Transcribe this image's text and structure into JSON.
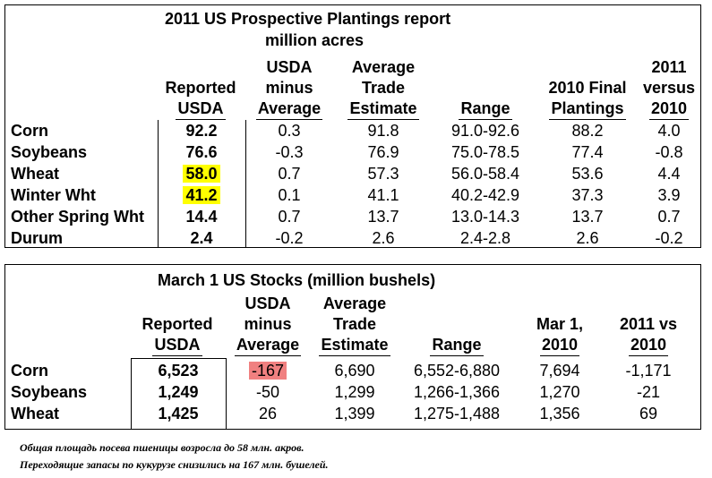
{
  "plantings": {
    "title_line1": "2011 US Prospective Plantings report",
    "title_line2": "million acres",
    "headers": {
      "reported": [
        "Reported",
        "USDA"
      ],
      "minus": [
        "USDA",
        "minus",
        "Average"
      ],
      "avg_trade": [
        "Average",
        "Trade",
        "Estimate"
      ],
      "range": [
        "Range"
      ],
      "final": [
        "2010 Final",
        "Plantings"
      ],
      "versus": [
        "2011",
        "versus",
        "2010"
      ]
    },
    "rows": [
      {
        "label": "Corn",
        "reported": "92.2",
        "minus": "0.3",
        "avg": "91.8",
        "range": "91.0-92.6",
        "final": "88.2",
        "versus": "4.0"
      },
      {
        "label": "Soybeans",
        "reported": "76.6",
        "minus": "-0.3",
        "avg": "76.9",
        "range": "75.0-78.5",
        "final": "77.4",
        "versus": "-0.8"
      },
      {
        "label": "Wheat",
        "reported": "58.0",
        "minus": "0.7",
        "avg": "57.3",
        "range": "56.0-58.4",
        "final": "53.6",
        "versus": "4.4"
      },
      {
        "label": "Winter Wht",
        "reported": "41.2",
        "minus": "0.1",
        "avg": "41.1",
        "range": "40.2-42.9",
        "final": "37.3",
        "versus": "3.9"
      },
      {
        "label": "Other Spring Wht",
        "reported": "14.4",
        "minus": "0.7",
        "avg": "13.7",
        "range": "13.0-14.3",
        "final": "13.7",
        "versus": "0.7"
      },
      {
        "label": "Durum",
        "reported": "2.4",
        "minus": "-0.2",
        "avg": "2.6",
        "range": "2.4-2.8",
        "final": "2.6",
        "versus": "-0.2"
      }
    ],
    "highlight_color": "#ffff00"
  },
  "stocks": {
    "title": "March 1 US Stocks (million bushels)",
    "headers": {
      "reported": [
        "Reported",
        "USDA"
      ],
      "minus": [
        "USDA",
        "minus",
        "Average"
      ],
      "avg_trade": [
        "Average",
        "Trade",
        "Estimate"
      ],
      "range": [
        "Range"
      ],
      "mar1": [
        "Mar 1,",
        "2010"
      ],
      "vs": [
        "2011 vs",
        "2010"
      ]
    },
    "rows": [
      {
        "label": "Corn",
        "reported": "6,523",
        "minus": "-167",
        "avg": "6,690",
        "range": "6,552-6,880",
        "mar1": "7,694",
        "vs": "-1,171"
      },
      {
        "label": "Soybeans",
        "reported": "1,249",
        "minus": "-50",
        "avg": "1,299",
        "range": "1,266-1,366",
        "mar1": "1,270",
        "vs": "-21"
      },
      {
        "label": "Wheat",
        "reported": "1,425",
        "minus": "26",
        "avg": "1,399",
        "range": "1,275-1,488",
        "mar1": "1,356",
        "vs": "69"
      }
    ],
    "highlight_color": "#f08080"
  },
  "notes": {
    "line1": "Общая площадь посева пшеницы возросла до 58 млн. акров.",
    "line2": "Переходящие запасы по кукурузе снизились на 167 млн. бушелей."
  }
}
